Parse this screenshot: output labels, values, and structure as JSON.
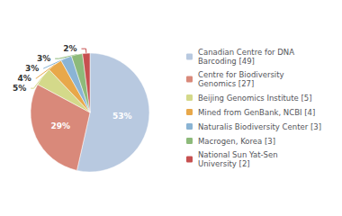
{
  "chart_data": {
    "type": "pie",
    "categories": [
      "Canadian Centre for DNA\nBarcoding [49]",
      "Centre for Biodiversity\nGenomics [27]",
      "Beijing Genomics Institute [5]",
      "Mined from GenBank, NCBI [4]",
      "Naturalis Biodiversity Center [3]",
      "Macrogen, Korea [3]",
      "National Sun Yat-Sen\nUniversity [2]"
    ],
    "values": [
      53,
      29,
      5,
      4,
      3,
      3,
      2
    ],
    "value_labels": [
      "53%",
      "29%",
      "5%",
      "4%",
      "3%",
      "3%",
      "2%"
    ],
    "colors": [
      "#b8c9e0",
      "#d9897a",
      "#d4d98a",
      "#e8a84a",
      "#8ab4d4",
      "#8dba7a",
      "#c75050"
    ],
    "data_labels": true,
    "legend": "right"
  }
}
